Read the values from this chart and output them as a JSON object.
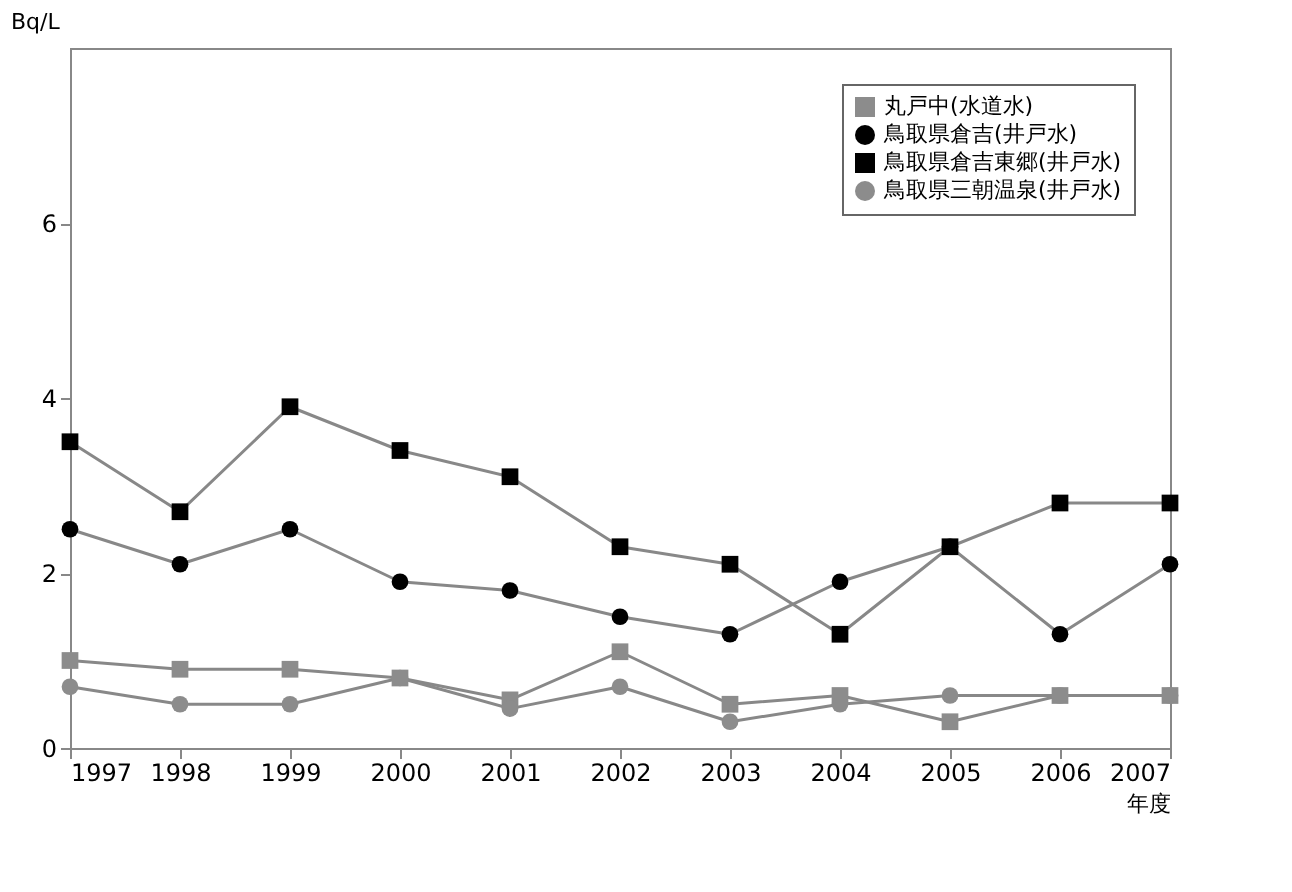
{
  "chart_data": {
    "type": "line",
    "ylabel": "Bq/L",
    "xlabel": "年度",
    "categories": [
      "1997",
      "1998",
      "1999",
      "2000",
      "2001",
      "2002",
      "2003",
      "2004",
      "2005",
      "2006",
      "2007"
    ],
    "series": [
      {
        "name": "丸戸中(水道水)",
        "color": "#8c8c8c",
        "marker": "square",
        "values": [
          1.0,
          0.9,
          0.9,
          0.8,
          0.55,
          1.1,
          0.5,
          0.6,
          0.3,
          0.6,
          0.6
        ]
      },
      {
        "name": "鳥取県倉吉(井戸水)",
        "color": "#000000",
        "marker": "circle",
        "values": [
          2.5,
          2.1,
          2.5,
          1.9,
          1.8,
          1.5,
          1.3,
          1.9,
          2.3,
          1.3,
          2.1
        ]
      },
      {
        "name": "鳥取県倉吉東郷(井戸水)",
        "color": "#000000",
        "marker": "square",
        "values": [
          3.5,
          2.7,
          3.9,
          3.4,
          3.1,
          2.3,
          2.1,
          1.3,
          2.3,
          2.8,
          2.8
        ]
      },
      {
        "name": "鳥取県三朝温泉(井戸水)",
        "color": "#8c8c8c",
        "marker": "circle",
        "values": [
          0.7,
          0.5,
          0.5,
          0.8,
          0.45,
          0.7,
          0.3,
          0.5,
          0.6,
          0.6,
          0.6
        ]
      }
    ],
    "ylim": [
      0,
      8
    ],
    "yticks": [
      0,
      2,
      4,
      6
    ],
    "grid": false,
    "legend": "top right",
    "line_style": "solid"
  }
}
